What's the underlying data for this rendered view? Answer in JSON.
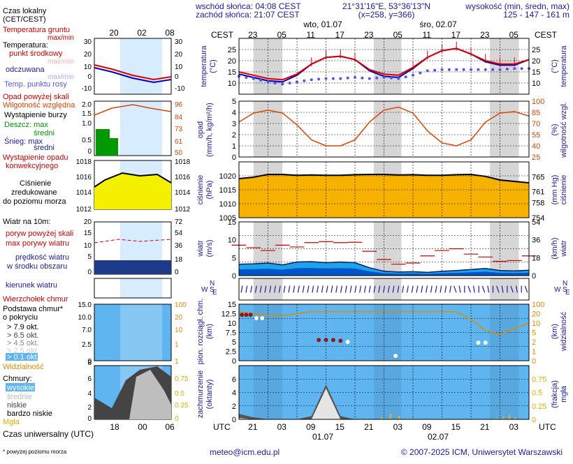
{
  "header": {
    "sunrise": "wschód słońca: 04:08 CEST",
    "sunset": "zachód słońca: 21:07 CEST",
    "coords": "21°31'16\"E, 53°36'13\"N",
    "grid": "(x=258, y=366)",
    "altitude_label": "wysokość (min, średn, max)",
    "altitude_values": "125 - 147 - 161 m"
  },
  "legend": {
    "local_time": "Czas lokalny",
    "local_time_zone": "(CET/CEST)",
    "local_hours": [
      "20",
      "02",
      "08"
    ],
    "ground_temp": "Temperatura gruntu",
    "ground_temp_sub": "max/min",
    "temperature": "Temperatura:",
    "temp_mid": "punkt środkowy",
    "temp_maxmin": "max/min",
    "temp_felt": "odczuwana",
    "temp_felt_maxmin": "max/min",
    "dew_point": "Temp. punktu rosy",
    "precip_above": "Opad powyżej skali",
    "humidity": "Wilgotność względna",
    "storm": "Wystąpienie burzy",
    "rain": "Deszcz: max",
    "rain_mean": "średni",
    "snow": "Śnieg: max",
    "snow_mean": "średni",
    "convective": "Wystąpienie opadu",
    "convective2": "konwekcyjnego",
    "pressure": "Ciśnienie",
    "pressure2": "zredukowane",
    "pressure3": "do poziomu morza",
    "wind": "Wiatr na 10m:",
    "gust_above": "poryw powyżej skali",
    "gust_max": "max porywy wiatru",
    "wind_speed": "prędkość wiatru",
    "wind_speed2": "w środku obszaru",
    "wind_dir": "kierunek wiatru",
    "cloud_top": "Wierzchołek chmur",
    "cloud_base": "Podstawa chmur*",
    "cloud_base2": "o pokryciu",
    "okt": [
      "> 7.9 okt.",
      "> 6.5 okt.",
      "> 4.5 okt.",
      "> 2.5 okt.",
      "> 0.1 okt."
    ],
    "visibility": "Widzialność",
    "clouds": "Chmury:",
    "cloud_high": "wysokie",
    "cloud_mid": "średnie",
    "cloud_low": "niskie",
    "cloud_vlow": "bardzo niskie",
    "fog": "Mgła",
    "utc_label": "Czas uniwersalny (UTC)",
    "utc_hours": [
      "18",
      "00",
      "06"
    ],
    "footnote": "* powyżej poziomu morza"
  },
  "axes": {
    "cest": "CEST",
    "utc": "UTC",
    "day1": "wto, 01.07",
    "day2": "śro, 02.07",
    "top_hours": [
      "23",
      "05",
      "11",
      "17",
      "23",
      "05",
      "11",
      "17",
      "23",
      "05"
    ],
    "bottom_hours": [
      "21",
      "03",
      "09",
      "15",
      "21",
      "03",
      "09",
      "15",
      "21",
      "03"
    ],
    "date1": "01.07",
    "date2": "02.07"
  },
  "panels": {
    "temp_left": "temperatura",
    "temp_left_unit": "(°C)",
    "temp_right": "temperatura",
    "temp_right_unit": "(°C)",
    "precip_left": "opad",
    "precip_left_unit": "(mm/h, kg/m²/h)",
    "precip_right": "wilgotność wzgl.",
    "precip_right_unit": "(%)",
    "press_left": "ciśnienie",
    "press_left_unit": "(hPa)",
    "press_right": "ciśnienie",
    "press_right_unit": "(mm Hg)",
    "wind_left": "wiatr",
    "wind_left_unit": "(m/s)",
    "wind_right": "wiatr",
    "wind_right_unit": "(km/h)",
    "cloud_left": "pion. rozciągł. chm.",
    "cloud_left_unit": "(km)",
    "cloud_right": "widzialność",
    "cloud_right_unit": "(km)",
    "cov_left": "zachmurzenie",
    "cov_left_unit": "(oktanty)",
    "cov_right": "mgła",
    "cov_right_unit": "(frakcja)",
    "compass_w": "W",
    "compass_n": "N",
    "compass_s": "S",
    "compass_e": "E"
  },
  "footer": {
    "email": "meteo@icm.edu.pl",
    "copyright": "© 2007-2025 ICM, Uniwersytet Warszawski"
  },
  "colors": {
    "temp": "#dd0000",
    "felt": "#0000bb",
    "dew": "#5555ee",
    "humidity": "#dd4400",
    "pressure_fill": "#f7b200",
    "pressure_line": "#000000",
    "wind_fill": "#0055cc",
    "wind_fill_light": "#1fa3e8",
    "gust": "#cc0000",
    "cloud_bg": "#5fb5f0",
    "night": "#d6d6d6",
    "visibility": "#e08a00",
    "navy": "#1a1aa0"
  },
  "chart_data": [
    {
      "type": "line",
      "title": "temperatura",
      "ylabel": "(°C)",
      "ylim": [
        5,
        30
      ],
      "x_hours_utc": [
        18,
        21,
        0,
        3,
        6,
        9,
        12,
        15,
        18,
        21,
        0,
        3,
        6,
        9,
        12,
        15,
        18,
        21,
        0,
        3,
        6
      ],
      "series": [
        {
          "name": "punkt środkowy",
          "values": [
            15,
            13.5,
            12,
            11.5,
            14,
            18.5,
            21.5,
            22,
            20.5,
            16,
            14,
            13.5,
            17,
            21.5,
            24.5,
            25.5,
            23,
            20,
            18.5,
            18.5,
            20.5
          ]
        },
        {
          "name": "odczuwana",
          "values": [
            14,
            12.5,
            11,
            10.5,
            13.5,
            18.5,
            21.5,
            22,
            20.5,
            15.5,
            13,
            12.5,
            16.5,
            21.5,
            24.5,
            25.5,
            23,
            19.5,
            18,
            18,
            20.5
          ]
        },
        {
          "name": "Temp. punktu rosy",
          "values": [
            13,
            12,
            10.5,
            9.5,
            10.5,
            11.5,
            12,
            12,
            12.5,
            12,
            12.5,
            12,
            13.5,
            15.5,
            16,
            16,
            16,
            16,
            16,
            16.5,
            16.5
          ]
        }
      ]
    },
    {
      "type": "line",
      "title": "Wilgotność względna",
      "ylabel": "(%)",
      "ylim": [
        25,
        100
      ],
      "x_hours_utc": [
        18,
        21,
        0,
        3,
        6,
        9,
        12,
        15,
        18,
        21,
        0,
        3,
        6,
        9,
        12,
        15,
        18,
        21,
        0,
        3,
        6
      ],
      "values": [
        72,
        84,
        88,
        84,
        68,
        48,
        40,
        40,
        48,
        72,
        88,
        92,
        84,
        60,
        44,
        40,
        48,
        72,
        84,
        86,
        80
      ]
    },
    {
      "type": "area",
      "title": "ciśnienie",
      "ylabel": "(hPa)",
      "ylim": [
        1005,
        1025
      ],
      "x_hours_utc": [
        18,
        21,
        0,
        3,
        6,
        9,
        12,
        15,
        18,
        21,
        0,
        3,
        6,
        9,
        12,
        15,
        18,
        21,
        0,
        3,
        6
      ],
      "values": [
        1019,
        1019.5,
        1020.5,
        1020.5,
        1020.2,
        1020.3,
        1020.2,
        1020.2,
        1020.4,
        1020.5,
        1020.5,
        1020.3,
        1020.4,
        1020.2,
        1020.2,
        1020.4,
        1020.5,
        1019.8,
        1018.5,
        1018,
        1017.5
      ]
    },
    {
      "type": "area",
      "title": "wiatr",
      "ylabel": "(m/s)",
      "ylim": [
        0,
        15
      ],
      "x_hours_utc": [
        18,
        21,
        0,
        3,
        6,
        9,
        12,
        15,
        18,
        21,
        0,
        3,
        6,
        9,
        12,
        15,
        18,
        21,
        0,
        3,
        6
      ],
      "series": [
        {
          "name": "prędkość wiatru",
          "values": [
            3.2,
            3.3,
            3.5,
            3.0,
            3.8,
            3.9,
            3.6,
            3.8,
            3.6,
            2.2,
            1.2,
            1.0,
            1.1,
            0.9,
            1.2,
            1.4,
            1.7,
            2.0,
            1.4,
            1.3,
            1.5
          ]
        },
        {
          "name": "max porywy wiatru",
          "values": [
            8.5,
            7.8,
            7.0,
            8.5,
            8.0,
            9.2,
            9.5,
            9.2,
            9.3,
            6.8,
            4.5,
            3.2,
            3.5,
            5.5,
            7.0,
            7.5,
            6.0,
            5.2,
            4.0,
            4.2,
            5.5
          ]
        }
      ]
    },
    {
      "type": "line",
      "title": "widzialność",
      "ylabel": "(km)",
      "ylim": [
        0,
        15
      ],
      "x_hours_utc": [
        18,
        21,
        0,
        3,
        6,
        9,
        12,
        15,
        18,
        21,
        0,
        3,
        6,
        9,
        12,
        15,
        18,
        21,
        0,
        3,
        6
      ],
      "values": [
        13,
        12.5,
        12,
        12,
        12.5,
        13,
        13,
        13,
        13,
        13,
        13,
        13,
        13,
        13,
        13,
        13,
        11,
        8,
        7,
        8.5,
        10
      ]
    },
    {
      "type": "area",
      "title": "zachmurzenie",
      "ylabel": "(oktanty)",
      "ylim": [
        0,
        8
      ],
      "x_hours_utc": [
        18,
        21,
        0,
        3,
        6,
        9,
        12,
        15,
        18,
        21,
        0,
        3,
        6,
        9,
        12,
        15,
        18,
        21,
        0,
        3,
        6
      ],
      "values": [
        0.8,
        0.3,
        0,
        0,
        0,
        0.5,
        5.2,
        0.5,
        0,
        0,
        0,
        0,
        0,
        0,
        0,
        0,
        0,
        0,
        0,
        0,
        0
      ]
    }
  ]
}
